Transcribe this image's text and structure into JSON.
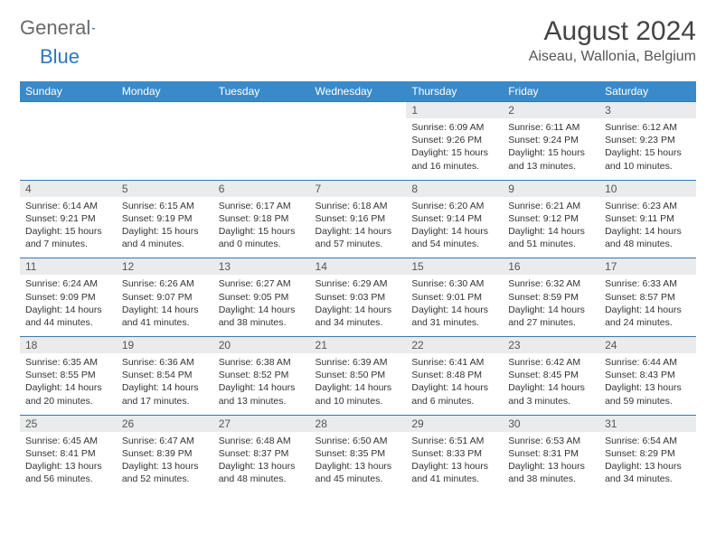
{
  "logo": {
    "word1": "General",
    "word2": "Blue"
  },
  "header": {
    "month_title": "August 2024",
    "location": "Aiseau, Wallonia, Belgium"
  },
  "colors": {
    "header_bg": "#3a8ac9",
    "header_text": "#ffffff",
    "daynum_bg": "#e9ebec",
    "row_border": "#3a78aa",
    "logo_gray": "#6a6a6a",
    "logo_blue": "#2b78c2"
  },
  "day_labels": [
    "Sunday",
    "Monday",
    "Tuesday",
    "Wednesday",
    "Thursday",
    "Friday",
    "Saturday"
  ],
  "weeks": [
    [
      null,
      null,
      null,
      null,
      {
        "n": "1",
        "sr": "6:09 AM",
        "ss": "9:26 PM",
        "dl": "15 hours and 16 minutes."
      },
      {
        "n": "2",
        "sr": "6:11 AM",
        "ss": "9:24 PM",
        "dl": "15 hours and 13 minutes."
      },
      {
        "n": "3",
        "sr": "6:12 AM",
        "ss": "9:23 PM",
        "dl": "15 hours and 10 minutes."
      }
    ],
    [
      {
        "n": "4",
        "sr": "6:14 AM",
        "ss": "9:21 PM",
        "dl": "15 hours and 7 minutes."
      },
      {
        "n": "5",
        "sr": "6:15 AM",
        "ss": "9:19 PM",
        "dl": "15 hours and 4 minutes."
      },
      {
        "n": "6",
        "sr": "6:17 AM",
        "ss": "9:18 PM",
        "dl": "15 hours and 0 minutes."
      },
      {
        "n": "7",
        "sr": "6:18 AM",
        "ss": "9:16 PM",
        "dl": "14 hours and 57 minutes."
      },
      {
        "n": "8",
        "sr": "6:20 AM",
        "ss": "9:14 PM",
        "dl": "14 hours and 54 minutes."
      },
      {
        "n": "9",
        "sr": "6:21 AM",
        "ss": "9:12 PM",
        "dl": "14 hours and 51 minutes."
      },
      {
        "n": "10",
        "sr": "6:23 AM",
        "ss": "9:11 PM",
        "dl": "14 hours and 48 minutes."
      }
    ],
    [
      {
        "n": "11",
        "sr": "6:24 AM",
        "ss": "9:09 PM",
        "dl": "14 hours and 44 minutes."
      },
      {
        "n": "12",
        "sr": "6:26 AM",
        "ss": "9:07 PM",
        "dl": "14 hours and 41 minutes."
      },
      {
        "n": "13",
        "sr": "6:27 AM",
        "ss": "9:05 PM",
        "dl": "14 hours and 38 minutes."
      },
      {
        "n": "14",
        "sr": "6:29 AM",
        "ss": "9:03 PM",
        "dl": "14 hours and 34 minutes."
      },
      {
        "n": "15",
        "sr": "6:30 AM",
        "ss": "9:01 PM",
        "dl": "14 hours and 31 minutes."
      },
      {
        "n": "16",
        "sr": "6:32 AM",
        "ss": "8:59 PM",
        "dl": "14 hours and 27 minutes."
      },
      {
        "n": "17",
        "sr": "6:33 AM",
        "ss": "8:57 PM",
        "dl": "14 hours and 24 minutes."
      }
    ],
    [
      {
        "n": "18",
        "sr": "6:35 AM",
        "ss": "8:55 PM",
        "dl": "14 hours and 20 minutes."
      },
      {
        "n": "19",
        "sr": "6:36 AM",
        "ss": "8:54 PM",
        "dl": "14 hours and 17 minutes."
      },
      {
        "n": "20",
        "sr": "6:38 AM",
        "ss": "8:52 PM",
        "dl": "14 hours and 13 minutes."
      },
      {
        "n": "21",
        "sr": "6:39 AM",
        "ss": "8:50 PM",
        "dl": "14 hours and 10 minutes."
      },
      {
        "n": "22",
        "sr": "6:41 AM",
        "ss": "8:48 PM",
        "dl": "14 hours and 6 minutes."
      },
      {
        "n": "23",
        "sr": "6:42 AM",
        "ss": "8:45 PM",
        "dl": "14 hours and 3 minutes."
      },
      {
        "n": "24",
        "sr": "6:44 AM",
        "ss": "8:43 PM",
        "dl": "13 hours and 59 minutes."
      }
    ],
    [
      {
        "n": "25",
        "sr": "6:45 AM",
        "ss": "8:41 PM",
        "dl": "13 hours and 56 minutes."
      },
      {
        "n": "26",
        "sr": "6:47 AM",
        "ss": "8:39 PM",
        "dl": "13 hours and 52 minutes."
      },
      {
        "n": "27",
        "sr": "6:48 AM",
        "ss": "8:37 PM",
        "dl": "13 hours and 48 minutes."
      },
      {
        "n": "28",
        "sr": "6:50 AM",
        "ss": "8:35 PM",
        "dl": "13 hours and 45 minutes."
      },
      {
        "n": "29",
        "sr": "6:51 AM",
        "ss": "8:33 PM",
        "dl": "13 hours and 41 minutes."
      },
      {
        "n": "30",
        "sr": "6:53 AM",
        "ss": "8:31 PM",
        "dl": "13 hours and 38 minutes."
      },
      {
        "n": "31",
        "sr": "6:54 AM",
        "ss": "8:29 PM",
        "dl": "13 hours and 34 minutes."
      }
    ]
  ],
  "labels": {
    "sunrise": "Sunrise:",
    "sunset": "Sunset:",
    "daylight": "Daylight:"
  }
}
